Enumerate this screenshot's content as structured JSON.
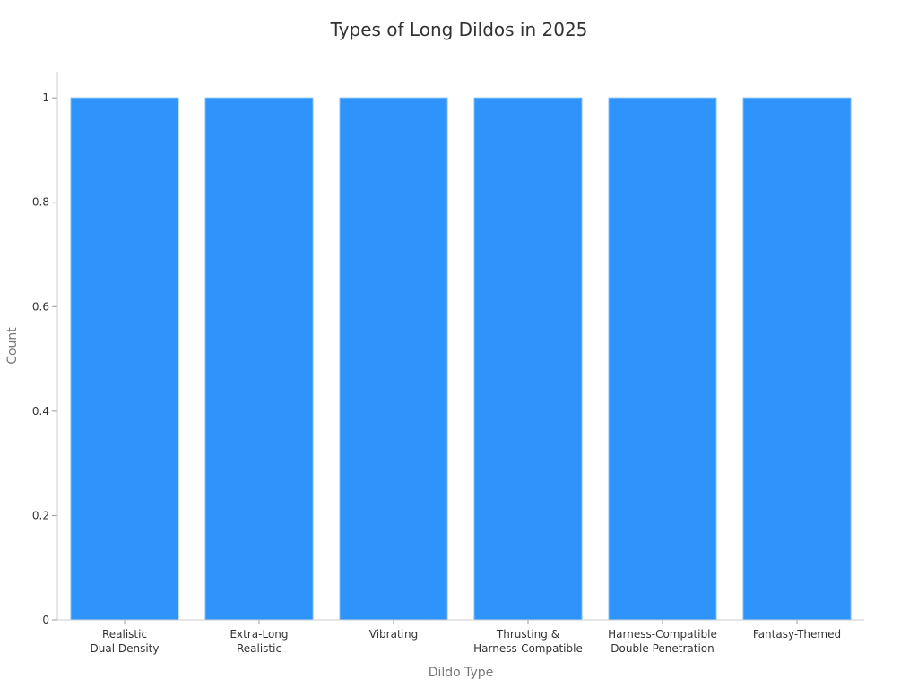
{
  "chart_data": {
    "type": "bar",
    "title": "Types of Long Dildos in 2025",
    "xlabel": "Dildo Type",
    "ylabel": "Count",
    "categories": [
      [
        "Realistic",
        "Dual Density"
      ],
      [
        "Extra-Long",
        "Realistic"
      ],
      [
        "Vibrating"
      ],
      [
        "Thrusting &",
        "Harness-Compatible"
      ],
      [
        "Harness-Compatible",
        "Double Penetration"
      ],
      [
        "Fantasy-Themed"
      ]
    ],
    "values": [
      1,
      1,
      1,
      1,
      1,
      1
    ],
    "ylim": [
      0,
      1.05
    ],
    "yticks": [
      0,
      0.2,
      0.4,
      0.6,
      0.8,
      1
    ],
    "ytick_labels": [
      "0",
      "0.2",
      "0.4",
      "0.6",
      "0.8",
      "1"
    ],
    "bar_color": "#2E93FA",
    "grid": false,
    "legend": "none"
  }
}
